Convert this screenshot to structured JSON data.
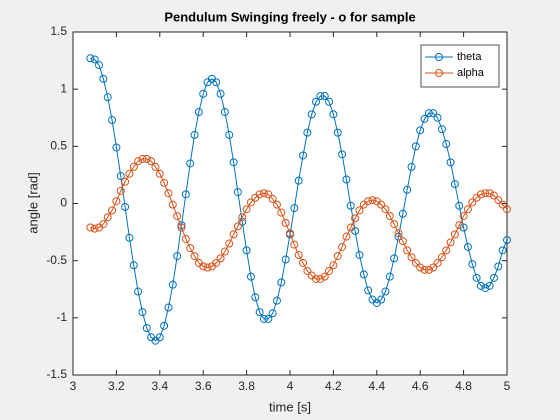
{
  "chart_data": {
    "type": "line",
    "title": "Pendulum Swinging freely - o for sample",
    "xlabel": "time [s]",
    "ylabel": "angle [rad]",
    "x": [
      3.08,
      3.1,
      3.12,
      3.14,
      3.16,
      3.18,
      3.2,
      3.22,
      3.24,
      3.26,
      3.28,
      3.3,
      3.32,
      3.34,
      3.36,
      3.38,
      3.4,
      3.42,
      3.44,
      3.46,
      3.48,
      3.5,
      3.52,
      3.54,
      3.56,
      3.58,
      3.6,
      3.62,
      3.64,
      3.66,
      3.68,
      3.7,
      3.72,
      3.74,
      3.76,
      3.78,
      3.8,
      3.82,
      3.84,
      3.86,
      3.88,
      3.9,
      3.92,
      3.94,
      3.96,
      3.98,
      4.0,
      4.02,
      4.04,
      4.06,
      4.08,
      4.1,
      4.12,
      4.14,
      4.16,
      4.18,
      4.2,
      4.22,
      4.24,
      4.26,
      4.28,
      4.3,
      4.32,
      4.34,
      4.36,
      4.38,
      4.4,
      4.42,
      4.44,
      4.46,
      4.48,
      4.5,
      4.52,
      4.54,
      4.56,
      4.58,
      4.6,
      4.62,
      4.64,
      4.66,
      4.68,
      4.7,
      4.72,
      4.74,
      4.76,
      4.78,
      4.8,
      4.82,
      4.84,
      4.86,
      4.88,
      4.9,
      4.92,
      4.94,
      4.96,
      4.98,
      5.0
    ],
    "series": [
      {
        "name": "theta",
        "color": "#0072BD",
        "values": [
          1.27,
          1.26,
          1.21,
          1.09,
          0.93,
          0.73,
          0.49,
          0.24,
          -0.03,
          -0.3,
          -0.54,
          -0.77,
          -0.95,
          -1.09,
          -1.17,
          -1.2,
          -1.17,
          -1.07,
          -0.91,
          -0.71,
          -0.46,
          -0.19,
          0.08,
          0.35,
          0.6,
          0.8,
          0.96,
          1.06,
          1.09,
          1.06,
          0.96,
          0.8,
          0.6,
          0.36,
          0.1,
          -0.16,
          -0.41,
          -0.64,
          -0.82,
          -0.95,
          -1.01,
          -1.01,
          -0.96,
          -0.85,
          -0.69,
          -0.49,
          -0.27,
          -0.04,
          0.2,
          0.42,
          0.62,
          0.78,
          0.89,
          0.94,
          0.94,
          0.89,
          0.78,
          0.62,
          0.43,
          0.21,
          -0.02,
          -0.24,
          -0.45,
          -0.62,
          -0.76,
          -0.84,
          -0.87,
          -0.84,
          -0.77,
          -0.64,
          -0.48,
          -0.29,
          -0.09,
          0.12,
          0.32,
          0.5,
          0.64,
          0.74,
          0.79,
          0.79,
          0.75,
          0.65,
          0.52,
          0.36,
          0.17,
          -0.02,
          -0.21,
          -0.38,
          -0.53,
          -0.65,
          -0.72,
          -0.74,
          -0.72,
          -0.65,
          -0.55,
          -0.41,
          -0.32
        ]
      },
      {
        "name": "alpha",
        "color": "#D95319",
        "values": [
          -0.21,
          -0.22,
          -0.21,
          -0.18,
          -0.12,
          -0.06,
          0.02,
          0.11,
          0.19,
          0.26,
          0.32,
          0.37,
          0.39,
          0.39,
          0.37,
          0.32,
          0.26,
          0.18,
          0.09,
          -0.01,
          -0.11,
          -0.21,
          -0.31,
          -0.39,
          -0.46,
          -0.52,
          -0.55,
          -0.56,
          -0.55,
          -0.52,
          -0.48,
          -0.42,
          -0.35,
          -0.27,
          -0.2,
          -0.12,
          -0.05,
          0.01,
          0.05,
          0.08,
          0.09,
          0.08,
          0.04,
          -0.01,
          -0.08,
          -0.17,
          -0.26,
          -0.36,
          -0.45,
          -0.52,
          -0.59,
          -0.63,
          -0.66,
          -0.66,
          -0.64,
          -0.59,
          -0.54,
          -0.46,
          -0.38,
          -0.29,
          -0.21,
          -0.13,
          -0.06,
          -0.01,
          0.02,
          0.03,
          0.02,
          -0.01,
          -0.05,
          -0.11,
          -0.18,
          -0.26,
          -0.33,
          -0.41,
          -0.47,
          -0.52,
          -0.56,
          -0.58,
          -0.58,
          -0.56,
          -0.52,
          -0.47,
          -0.41,
          -0.34,
          -0.27,
          -0.19,
          -0.11,
          -0.05,
          0.01,
          0.05,
          0.08,
          0.09,
          0.09,
          0.07,
          0.03,
          -0.01,
          -0.05
        ]
      }
    ],
    "xlim": [
      3,
      5
    ],
    "xticks": [
      3,
      3.2,
      3.4,
      3.6,
      3.8,
      4,
      4.2,
      4.4,
      4.6,
      4.8,
      5
    ],
    "ylim": [
      -1.5,
      1.5
    ],
    "yticks": [
      -1.5,
      -1,
      -0.5,
      0,
      0.5,
      1,
      1.5
    ],
    "grid": false,
    "legend": "northeast",
    "marker": "circle"
  }
}
